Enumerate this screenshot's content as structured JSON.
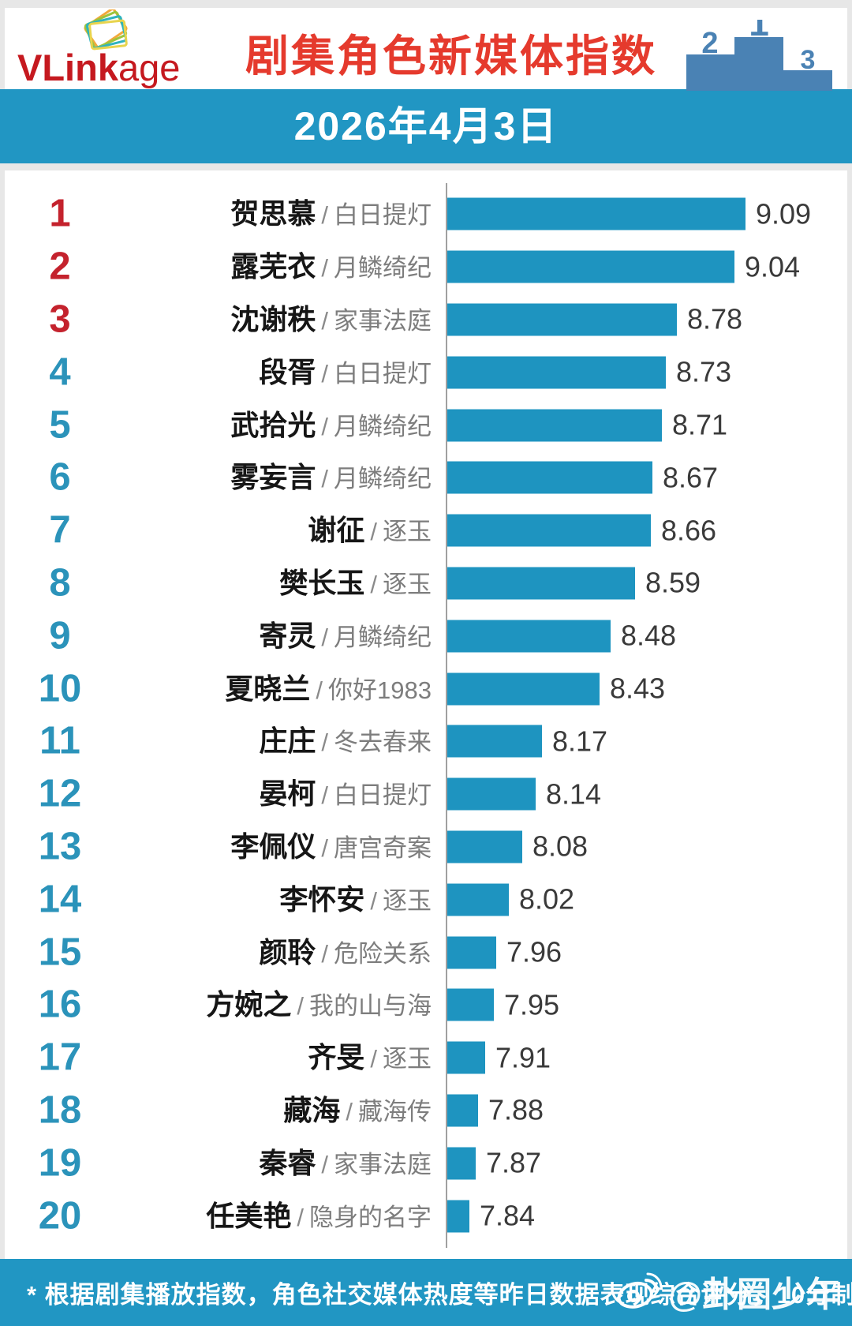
{
  "header": {
    "logo_bold": "VLink",
    "logo_rest": "age",
    "title": "剧集角色新媒体指数",
    "podium": {
      "first": "1",
      "second": "2",
      "third": "3"
    }
  },
  "date_banner": {
    "text": "2026年4月3日"
  },
  "chart_data": {
    "type": "bar",
    "orientation": "horizontal",
    "title": "剧集角色新媒体指数",
    "date": "2026年4月3日",
    "value_scale": "10分制",
    "value_range": [
      0,
      10
    ],
    "separator": "/",
    "rows": [
      {
        "rank": 1,
        "name": "贺思慕",
        "show": "白日提灯",
        "value": 9.09
      },
      {
        "rank": 2,
        "name": "露芜衣",
        "show": "月鳞绮纪",
        "value": 9.04
      },
      {
        "rank": 3,
        "name": "沈谢秩",
        "show": "家事法庭",
        "value": 8.78
      },
      {
        "rank": 4,
        "name": "段胥",
        "show": "白日提灯",
        "value": 8.73
      },
      {
        "rank": 5,
        "name": "武拾光",
        "show": "月鳞绮纪",
        "value": 8.71
      },
      {
        "rank": 6,
        "name": "雾妄言",
        "show": "月鳞绮纪",
        "value": 8.67
      },
      {
        "rank": 7,
        "name": "谢征",
        "show": "逐玉",
        "value": 8.66
      },
      {
        "rank": 8,
        "name": "樊长玉",
        "show": "逐玉",
        "value": 8.59
      },
      {
        "rank": 9,
        "name": "寄灵",
        "show": "月鳞绮纪",
        "value": 8.48
      },
      {
        "rank": 10,
        "name": "夏晓兰",
        "show": "你好1983",
        "value": 8.43
      },
      {
        "rank": 11,
        "name": "庄庄",
        "show": "冬去春来",
        "value": 8.17
      },
      {
        "rank": 12,
        "name": "晏柯",
        "show": "白日提灯",
        "value": 8.14
      },
      {
        "rank": 13,
        "name": "李佩仪",
        "show": "唐宫奇案",
        "value": 8.08
      },
      {
        "rank": 14,
        "name": "李怀安",
        "show": "逐玉",
        "value": 8.02
      },
      {
        "rank": 15,
        "name": "颜聆",
        "show": "危险关系",
        "value": 7.96
      },
      {
        "rank": 16,
        "name": "方婉之",
        "show": "我的山与海",
        "value": 7.95
      },
      {
        "rank": 17,
        "name": "齐旻",
        "show": "逐玉",
        "value": 7.91
      },
      {
        "rank": 18,
        "name": "藏海",
        "show": "藏海传",
        "value": 7.88
      },
      {
        "rank": 19,
        "name": "秦睿",
        "show": "家事法庭",
        "value": 7.87
      },
      {
        "rank": 20,
        "name": "任美艳",
        "show": "隐身的名字",
        "value": 7.84
      }
    ]
  },
  "footer": {
    "note": "* 根据剧集播放指数，角色社交媒体热度等昨日数据表现综合评分，10分制",
    "watermark": "@卦圈少年"
  },
  "colors": {
    "accent_teal": "#2196C3",
    "bar": "#1E94C0",
    "rank_top3": "#C4222D",
    "rank_rest": "#2B93BA",
    "title_red": "#E53A2D",
    "logo_red": "#C5191F",
    "podium_blue": "#4A82B4",
    "score_text": "#3A3A3A",
    "show_text": "#7D7D7D"
  }
}
